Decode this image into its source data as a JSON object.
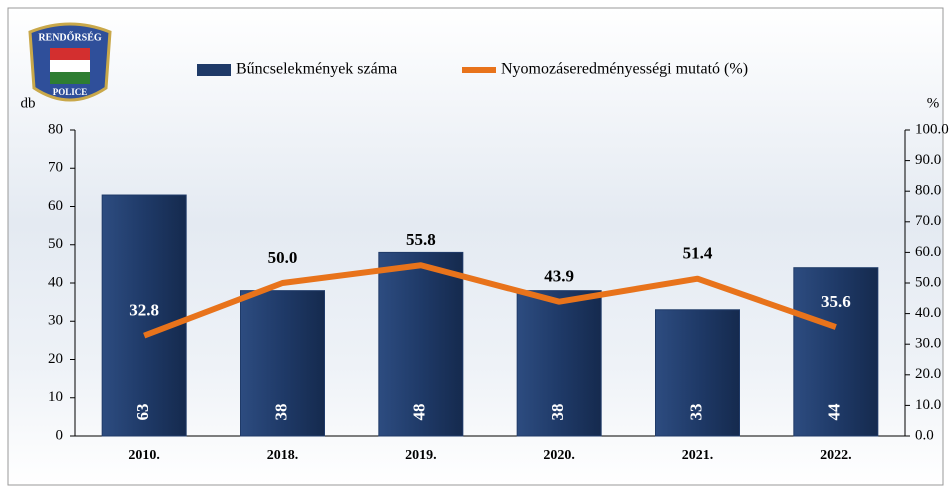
{
  "logo": {
    "top": "RENDŐRSÉG",
    "bottom": "POLICE"
  },
  "chart_data": {
    "type": "bar",
    "categories": [
      "2010.",
      "2018.",
      "2019.",
      "2020.",
      "2021.",
      "2022."
    ],
    "series": [
      {
        "name": "Bűncselekmények száma",
        "type": "bar",
        "color": "#1f3a68",
        "values": [
          63,
          38,
          48,
          38,
          33,
          44
        ]
      },
      {
        "name": "Nyomozáseredményességi mutató (%)",
        "type": "line",
        "color": "#e8731b",
        "axis": "y2",
        "values": [
          32.8,
          50,
          55.8,
          43.9,
          51.4,
          35.6
        ],
        "value_labels": [
          "32.8",
          "50.0",
          "55.8",
          "43.9",
          "51.4",
          "35.6"
        ]
      }
    ],
    "y_label": "db",
    "y2_label": "%",
    "ylim": [
      0,
      80
    ],
    "yticks": [
      0,
      10,
      20,
      30,
      40,
      50,
      60,
      70,
      80
    ],
    "y2lim": [
      0,
      100
    ],
    "y2ticks": [
      {
        "value": 0,
        "label": "0.0"
      },
      {
        "value": 10,
        "label": "10.0"
      },
      {
        "value": 20,
        "label": "20.0"
      },
      {
        "value": 30,
        "label": "30.0"
      },
      {
        "value": 40,
        "label": "40.0"
      },
      {
        "value": 50,
        "label": "50.0"
      },
      {
        "value": 60,
        "label": "60.0"
      },
      {
        "value": 70,
        "label": "70.0"
      },
      {
        "value": 80,
        "label": "80.0"
      },
      {
        "value": 90,
        "label": "90.0"
      },
      {
        "value": 100,
        "label": "100.0"
      }
    ]
  }
}
